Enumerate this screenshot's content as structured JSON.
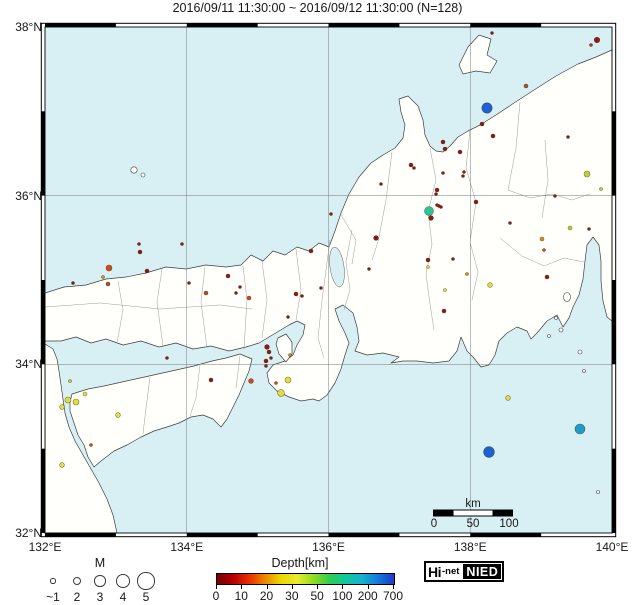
{
  "title": "2016/09/11 11:30:00 ~ 2016/09/12 11:30:00 (N=128)",
  "axes": {
    "lat": [
      "38°N",
      "36°N",
      "34°N",
      "32°N"
    ],
    "lon": [
      "132°E",
      "134°E",
      "136°E",
      "138°E",
      "140°E"
    ]
  },
  "scalebar": {
    "unit": "km",
    "ticks": [
      "0",
      "50",
      "100"
    ]
  },
  "legend": {
    "magnitude": {
      "title": "M",
      "sizes": [
        {
          "label": "~1",
          "r": 1.6
        },
        {
          "label": "2",
          "r": 3.3
        },
        {
          "label": "3",
          "r": 4.7
        },
        {
          "label": "4",
          "r": 5.8
        },
        {
          "label": "5",
          "r": 7.6
        }
      ]
    },
    "depth": {
      "title": "Depth[km]",
      "tick_labels": [
        "0",
        "10",
        "20",
        "30",
        "50",
        "100",
        "200",
        "700"
      ],
      "gradient": [
        "#780000",
        "#b40000",
        "#e83000",
        "#f08800",
        "#ecd800",
        "#e8ec30",
        "#90dc20",
        "#30cc50",
        "#10c8a0",
        "#14b4cc",
        "#1478dc",
        "#1c3cc8"
      ]
    }
  },
  "logo": {
    "left_main": "Hi",
    "left_sub": "-net",
    "right": "NIED"
  },
  "map": {
    "sea_color": "#d8f0f3",
    "land_color": "#fffffc",
    "quake_columns": [
      "x_px",
      "y_px",
      "radius_px",
      "depth_color"
    ],
    "quakes": [
      [
        597,
        40,
        2.8,
        "#8e1a12"
      ],
      [
        591,
        45,
        1.5,
        "#c03018"
      ],
      [
        492,
        33,
        1.5,
        "#8e1a12"
      ],
      [
        526,
        86,
        2,
        "#a8561e"
      ],
      [
        487,
        108,
        5.2,
        "#1b62d2"
      ],
      [
        482,
        124,
        2,
        "#8e1a12"
      ],
      [
        493,
        136,
        2,
        "#8e1a12"
      ],
      [
        568,
        137,
        1.5,
        "#8e1a12"
      ],
      [
        443,
        142,
        2,
        "#8e1a12"
      ],
      [
        445,
        149,
        2,
        "#8e1a12"
      ],
      [
        460,
        152,
        2,
        "#8e1a12"
      ],
      [
        411,
        165,
        2,
        "#8e1a12"
      ],
      [
        414,
        168,
        1.5,
        "#8e1a12"
      ],
      [
        464,
        172,
        1.5,
        "#8e1a12"
      ],
      [
        443,
        173,
        1.5,
        "#8e1a12"
      ],
      [
        463,
        176,
        1.5,
        "#8e1a12"
      ],
      [
        381,
        184,
        1.5,
        "#8e1a12"
      ],
      [
        437,
        190,
        2,
        "#8e1a12"
      ],
      [
        436,
        194,
        1.5,
        "#8e1a12"
      ],
      [
        439,
        206,
        1.5,
        "#8e1a12"
      ],
      [
        476,
        202,
        2,
        "#8e1a12"
      ],
      [
        587,
        174,
        3,
        "#bcd32a"
      ],
      [
        601,
        189,
        1.5,
        "#bcd32a"
      ],
      [
        555,
        196,
        1.5,
        "#8e1a12"
      ],
      [
        429,
        211,
        4.5,
        "#2ec48e"
      ],
      [
        437,
        205,
        1.5,
        "#8e1a12"
      ],
      [
        441,
        207,
        1.5,
        "#8e1a12"
      ],
      [
        431,
        218,
        2.4,
        "#8e1a12"
      ],
      [
        510,
        223,
        1.5,
        "#8e1a12"
      ],
      [
        570,
        228,
        2,
        "#bcd32a"
      ],
      [
        589,
        229,
        1.5,
        "#8e1a12"
      ],
      [
        331,
        214,
        1.5,
        "#8e1a12"
      ],
      [
        376,
        238,
        2.4,
        "#8e1a12"
      ],
      [
        311,
        251,
        2,
        "#8e1a12"
      ],
      [
        542,
        239,
        2,
        "#dc8c1c"
      ],
      [
        544,
        250,
        1.5,
        "#d24a14"
      ],
      [
        547,
        277,
        2,
        "#8e1a12"
      ],
      [
        428,
        260,
        2,
        "#8e1a12"
      ],
      [
        428,
        267,
        1.5,
        "#e2df3a"
      ],
      [
        453,
        259,
        1.5,
        "#8e1a12"
      ],
      [
        369,
        269,
        1.5,
        "#8e1a12"
      ],
      [
        321,
        288,
        1.5,
        "#8e1a12"
      ],
      [
        467,
        274,
        1.5,
        "#dc8c1c"
      ],
      [
        490,
        285,
        2.4,
        "#e2df3a"
      ],
      [
        445,
        290,
        1.5,
        "#e2df3a"
      ],
      [
        444,
        311,
        2,
        "#8e1a12"
      ],
      [
        139,
        244,
        1.5,
        "#8e1a12"
      ],
      [
        182,
        244,
        1.5,
        "#8e1a12"
      ],
      [
        140,
        252,
        2,
        "#8e1a12"
      ],
      [
        109,
        268,
        3,
        "#d24a14"
      ],
      [
        147,
        271,
        2,
        "#8e1a12"
      ],
      [
        103,
        277,
        1.5,
        "#dc8c1c"
      ],
      [
        73,
        283,
        1.5,
        "#8e1a12"
      ],
      [
        108,
        284,
        2,
        "#a8561e"
      ],
      [
        189,
        283,
        1.5,
        "#8e1a12"
      ],
      [
        228,
        276,
        2,
        "#8e1a12"
      ],
      [
        240,
        287,
        1.5,
        "#8e1a12"
      ],
      [
        236,
        293,
        1.5,
        "#8e1a12"
      ],
      [
        206,
        293,
        2,
        "#a8561e"
      ],
      [
        249,
        298,
        2,
        "#d24a14"
      ],
      [
        296,
        294,
        2,
        "#8e1a12"
      ],
      [
        302,
        296,
        1.5,
        "#8e1a12"
      ],
      [
        288,
        317,
        1.5,
        "#8e1a12"
      ],
      [
        267,
        347,
        2.4,
        "#8e1a12"
      ],
      [
        269,
        352,
        2,
        "#8e1a12"
      ],
      [
        271,
        358,
        1.5,
        "#8e1a12"
      ],
      [
        266,
        361,
        2,
        "#8e1a12"
      ],
      [
        266,
        366,
        1.5,
        "#8e1a12"
      ],
      [
        290,
        355,
        1.5,
        "#dc8c1c"
      ],
      [
        276,
        383,
        1.5,
        "#d24a14"
      ],
      [
        288,
        380,
        3,
        "#e2df3a"
      ],
      [
        281,
        393,
        3.4,
        "#e2df3a"
      ],
      [
        251,
        381,
        2.4,
        "#d24a14"
      ],
      [
        211,
        380,
        2,
        "#8e1a12"
      ],
      [
        167,
        358,
        1.5,
        "#8e1a12"
      ],
      [
        70,
        381,
        1.5,
        "#bcd32a"
      ],
      [
        85,
        394,
        2,
        "#e2df3a"
      ],
      [
        68,
        400,
        3,
        "#e2df3a"
      ],
      [
        76,
        402,
        3,
        "#e2df3a"
      ],
      [
        62,
        407,
        2.4,
        "#e2df3a"
      ],
      [
        118,
        415,
        2.4,
        "#e2df3a"
      ],
      [
        91,
        445,
        1.5,
        "#d24a14"
      ],
      [
        62,
        465,
        2.4,
        "#e2df3a"
      ],
      [
        508,
        398,
        2.4,
        "#e2df3a"
      ],
      [
        580,
        429,
        5,
        "#1c9cc8"
      ],
      [
        489,
        452,
        5.4,
        "#1b62d2"
      ]
    ]
  }
}
